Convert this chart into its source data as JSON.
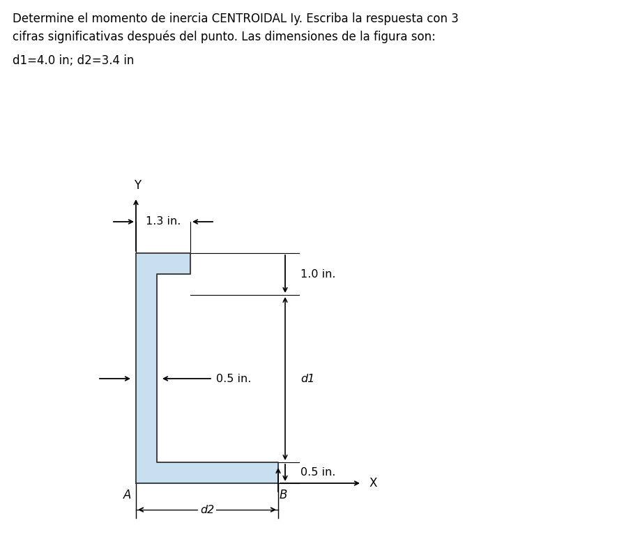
{
  "title_line1": "Determine el momento de inercia CENTROIDAL Iy. Escriba la respuesta con 3",
  "title_line2": "cifras significativas después del punto. Las dimensiones de la figura son:",
  "dimensions_text": "d1=4.0 in; d2=3.4 in",
  "shape_fill_color": "#c8dff0",
  "shape_edge_color": "#333333",
  "dim_1p3": "1.3 in.",
  "dim_1p0": "1.0 in.",
  "dim_0p5_web": "0.5 in.",
  "dim_0p5_bot": "0.5 in.",
  "dim_d1": "d1",
  "dim_d2": "d2",
  "label_A": "A",
  "label_B": "B",
  "label_X": "X",
  "label_Y": "Y",
  "bg_color": "#ffffff",
  "shape_lw": 1.3,
  "text_fontsize": 12,
  "dim_fontsize": 11.5
}
